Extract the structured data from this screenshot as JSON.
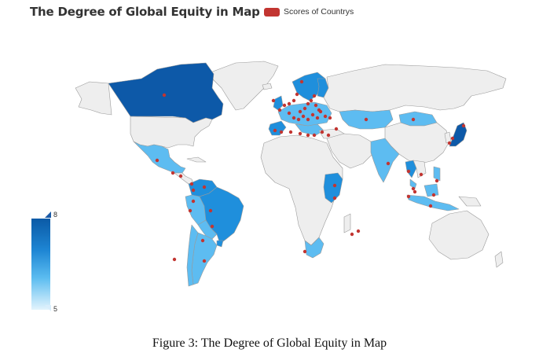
{
  "title": "The Degree of Global Equity in Map",
  "legend": {
    "label": "Scores of Countrys",
    "color": "#c23531"
  },
  "visual_map": {
    "max": "8",
    "min": "5",
    "orientation": "vertical",
    "color_high": "#0b5aa6",
    "color_low": "#e0f3fd"
  },
  "caption": "Figure 3: The Degree of Global Equity in Map",
  "colors": {
    "no_data": "#eeeeee",
    "dark": "#0d59a8",
    "mid": "#1f8fdc",
    "light": "#5dbcf1",
    "pale": "#a7dcf8"
  },
  "map_data": {
    "type": "choropleth-with-scatter",
    "scored_countries": [
      "Canada",
      "Mexico",
      "Brazil",
      "Argentina",
      "Chile",
      "Peru",
      "Colombia",
      "Venezuela",
      "Ecuador",
      "Uruguay",
      "Paraguay",
      "Costa Rica",
      "Kenya",
      "South Africa",
      "India",
      "Thailand",
      "Malaysia",
      "Indonesia",
      "Philippines",
      "Japan",
      "Mongolia",
      "Kazakhstan",
      "Norway",
      "Sweden",
      "Finland",
      "United Kingdom",
      "Spain",
      "Italy",
      "Greece"
    ]
  }
}
